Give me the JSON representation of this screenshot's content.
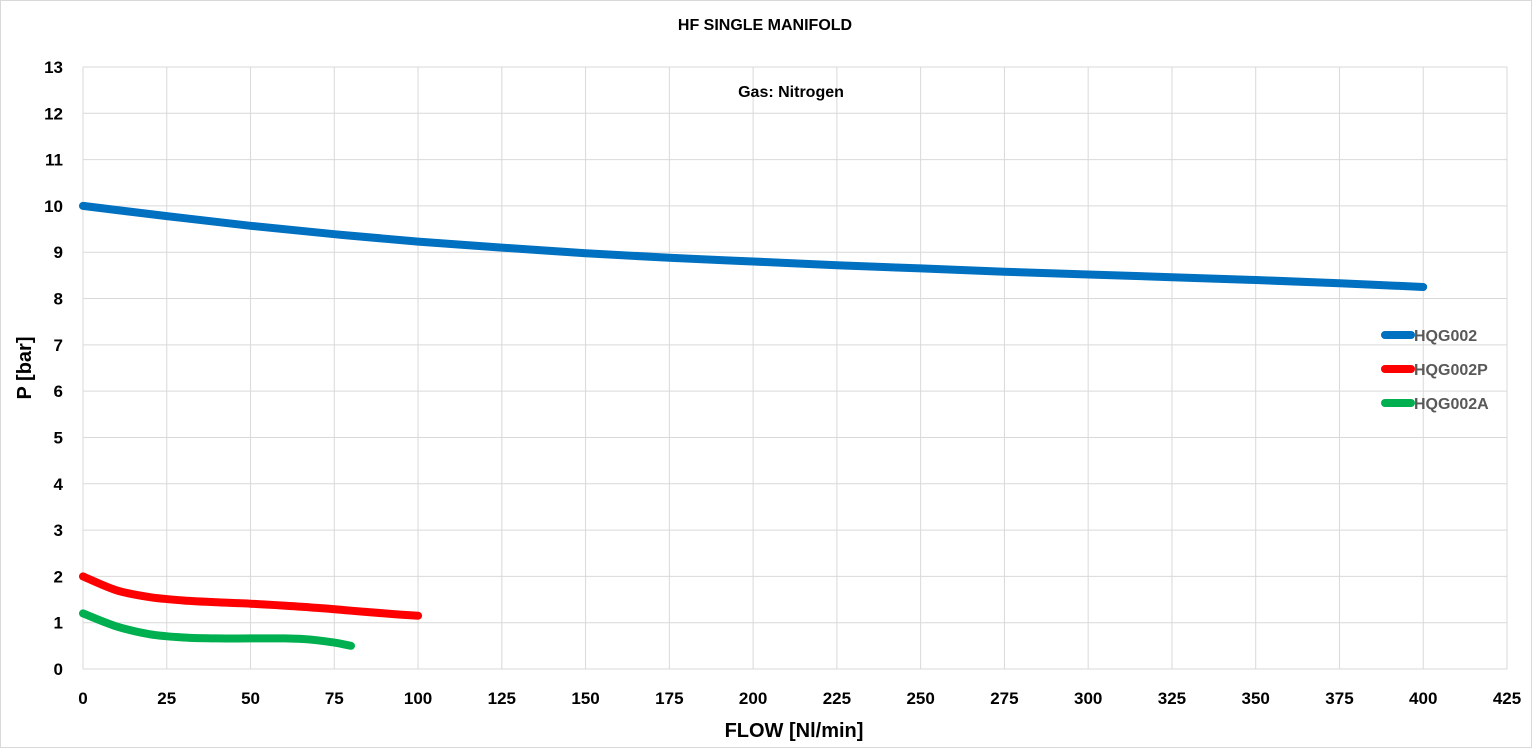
{
  "chart_data": {
    "type": "line",
    "title": "HF SINGLE MANIFOLD",
    "annotation": "Gas: Nitrogen",
    "xlabel": "FLOW [Nl/min]",
    "ylabel": "P [bar]",
    "xlim": [
      0,
      425
    ],
    "ylim": [
      0,
      13
    ],
    "xticks": [
      0,
      25,
      50,
      75,
      100,
      125,
      150,
      175,
      200,
      225,
      250,
      275,
      300,
      325,
      350,
      375,
      400,
      425
    ],
    "yticks": [
      0,
      1,
      2,
      3,
      4,
      5,
      6,
      7,
      8,
      9,
      10,
      11,
      12,
      13
    ],
    "grid": true,
    "legend_position": "right",
    "series": [
      {
        "name": "HQG002",
        "color": "#0070C0",
        "x": [
          0,
          25,
          50,
          75,
          100,
          125,
          150,
          175,
          200,
          225,
          250,
          275,
          300,
          325,
          350,
          375,
          400
        ],
        "y": [
          10.0,
          9.78,
          9.57,
          9.39,
          9.23,
          9.1,
          8.98,
          8.88,
          8.8,
          8.72,
          8.65,
          8.58,
          8.52,
          8.46,
          8.4,
          8.33,
          8.25
        ]
      },
      {
        "name": "HQG002P",
        "color": "#FF0000",
        "x": [
          0,
          10,
          20,
          30,
          40,
          50,
          60,
          70,
          80,
          90,
          100
        ],
        "y": [
          2.0,
          1.7,
          1.55,
          1.48,
          1.44,
          1.41,
          1.37,
          1.32,
          1.26,
          1.2,
          1.15
        ]
      },
      {
        "name": "HQG002A",
        "color": "#00B050",
        "x": [
          0,
          10,
          20,
          30,
          40,
          50,
          60,
          65,
          70,
          75,
          80
        ],
        "y": [
          1.2,
          0.92,
          0.75,
          0.68,
          0.66,
          0.66,
          0.66,
          0.65,
          0.62,
          0.57,
          0.5
        ]
      }
    ]
  }
}
